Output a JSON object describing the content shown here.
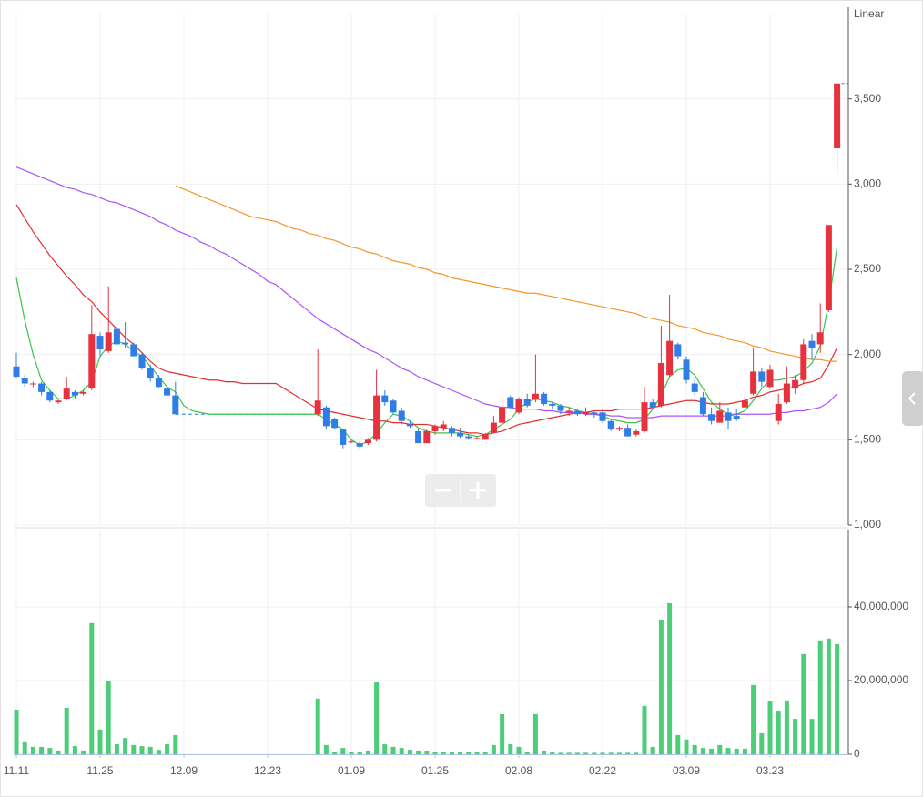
{
  "chart_data": {
    "type": "candlestick",
    "scale": "Linear",
    "categories": [
      "11.11",
      null,
      null,
      null,
      null,
      null,
      null,
      null,
      null,
      null,
      "11.25",
      null,
      null,
      null,
      null,
      null,
      null,
      null,
      null,
      null,
      "12.09",
      null,
      null,
      null,
      null,
      null,
      null,
      null,
      null,
      null,
      "12.23",
      null,
      null,
      null,
      null,
      null,
      null,
      null,
      null,
      null,
      "01.09",
      null,
      null,
      null,
      null,
      null,
      null,
      null,
      null,
      null,
      "01.25",
      null,
      null,
      null,
      null,
      null,
      null,
      null,
      null,
      null,
      "02.08",
      null,
      null,
      null,
      null,
      null,
      null,
      null,
      null,
      null,
      "02.22",
      null,
      null,
      null,
      null,
      null,
      null,
      null,
      null,
      null,
      "03.09",
      null,
      null,
      null,
      null,
      null,
      null,
      null,
      null,
      null,
      "03.23",
      null,
      null,
      null,
      null,
      null,
      null,
      null,
      null
    ],
    "open": [
      1930,
      1860,
      1830,
      1830,
      1780,
      1720,
      1740,
      1780,
      1770,
      1800,
      2110,
      2020,
      2150,
      2070,
      2060,
      2000,
      1920,
      1860,
      1800,
      1760,
      null,
      null,
      null,
      null,
      null,
      null,
      null,
      null,
      null,
      null,
      null,
      null,
      null,
      null,
      null,
      null,
      1650,
      1690,
      1620,
      1560,
      1490,
      1480,
      1480,
      1500,
      1760,
      1730,
      1670,
      1590,
      1550,
      1480,
      1550,
      1570,
      1570,
      1540,
      1520,
      1510,
      1500,
      1540,
      1600,
      1750,
      1660,
      1740,
      1740,
      1770,
      1710,
      1700,
      1660,
      1670,
      1650,
      1660,
      1660,
      1610,
      1560,
      1570,
      1530,
      1550,
      1720,
      1700,
      1880,
      2060,
      1970,
      1830,
      1750,
      1650,
      1600,
      1660,
      1640,
      1690,
      1770,
      1900,
      1810,
      1610,
      1720,
      1800,
      1850,
      2080,
      2060,
      2260,
      3210
    ],
    "high": [
      2010,
      1880,
      1840,
      1840,
      1790,
      1740,
      1870,
      1790,
      1790,
      2290,
      2130,
      2400,
      2180,
      2190,
      2070,
      2010,
      1940,
      1880,
      1810,
      1840,
      null,
      null,
      null,
      null,
      null,
      null,
      null,
      null,
      null,
      null,
      null,
      null,
      null,
      null,
      null,
      null,
      2030,
      1700,
      1630,
      1560,
      1500,
      1490,
      1510,
      1910,
      1790,
      1740,
      1690,
      1610,
      1560,
      1560,
      1590,
      1610,
      1580,
      1570,
      1530,
      1520,
      1540,
      1640,
      1750,
      1760,
      1750,
      1770,
      2000,
      1780,
      1720,
      1710,
      1690,
      1680,
      1690,
      1670,
      1680,
      1620,
      1580,
      1590,
      1560,
      1810,
      1740,
      2170,
      2350,
      2070,
      1990,
      1860,
      1780,
      1690,
      1720,
      1690,
      1680,
      1760,
      2040,
      1920,
      1940,
      1770,
      1930,
      1880,
      2090,
      2120,
      2300,
      2760,
      3590
    ],
    "low": [
      1860,
      1810,
      1810,
      1760,
      1720,
      1710,
      1730,
      1740,
      1760,
      1790,
      1990,
      2010,
      2050,
      2040,
      1990,
      1910,
      1840,
      1800,
      1740,
      1650,
      null,
      null,
      null,
      null,
      null,
      null,
      null,
      null,
      null,
      null,
      null,
      null,
      null,
      null,
      null,
      null,
      1640,
      1560,
      1560,
      1450,
      1480,
      1450,
      1470,
      1490,
      1700,
      1650,
      1590,
      1570,
      1480,
      1480,
      1530,
      1550,
      1520,
      1510,
      1500,
      1500,
      1500,
      1540,
      1590,
      1680,
      1650,
      1690,
      1720,
      1700,
      1680,
      1650,
      1640,
      1640,
      1640,
      1630,
      1600,
      1550,
      1550,
      1520,
      1520,
      1540,
      1680,
      1690,
      1870,
      1970,
      1830,
      1760,
      1640,
      1590,
      1600,
      1560,
      1610,
      1690,
      1760,
      1810,
      1800,
      1590,
      1710,
      1770,
      1830,
      1970,
      2010,
      2250,
      3060
    ],
    "close": [
      1870,
      1830,
      1830,
      1780,
      1730,
      1730,
      1800,
      1760,
      1780,
      2120,
      2030,
      2130,
      2060,
      2060,
      1990,
      1920,
      1860,
      1810,
      1760,
      1650,
      null,
      null,
      null,
      null,
      null,
      null,
      null,
      null,
      null,
      null,
      null,
      null,
      null,
      null,
      null,
      null,
      1730,
      1580,
      1570,
      1470,
      1490,
      1460,
      1500,
      1760,
      1720,
      1660,
      1610,
      1580,
      1480,
      1550,
      1580,
      1590,
      1540,
      1520,
      1510,
      1510,
      1530,
      1600,
      1690,
      1690,
      1740,
      1700,
      1770,
      1710,
      1700,
      1670,
      1670,
      1650,
      1660,
      1650,
      1610,
      1560,
      1570,
      1520,
      1550,
      1720,
      1690,
      1950,
      2080,
      1990,
      1850,
      1780,
      1650,
      1610,
      1670,
      1610,
      1620,
      1730,
      1900,
      1840,
      1910,
      1710,
      1830,
      1850,
      2060,
      2040,
      2130,
      2760,
      3590
    ],
    "up_color": "#e8313f",
    "down_color": "#2f7ee6",
    "lines": [
      {
        "color": "#3ec24c",
        "values": [
          2450,
          2200,
          2000,
          1850,
          1790,
          1740,
          1740,
          1760,
          1790,
          1840,
          1990,
          2050,
          2080,
          2060,
          2020,
          1990,
          1930,
          1870,
          1810,
          1780,
          1700,
          1670,
          1660,
          1650,
          1650,
          1650,
          1650,
          1650,
          1650,
          1650,
          1650,
          1650,
          1650,
          1650,
          1650,
          1650,
          1650,
          1620,
          1590,
          1560,
          1500,
          1470,
          1490,
          1540,
          1600,
          1650,
          1640,
          1610,
          1570,
          1550,
          1540,
          1540,
          1540,
          1540,
          1530,
          1520,
          1530,
          1560,
          1590,
          1620,
          1680,
          1720,
          1740,
          1730,
          1720,
          1700,
          1690,
          1670,
          1660,
          1650,
          1640,
          1620,
          1610,
          1600,
          1600,
          1620,
          1680,
          1760,
          1870,
          1910,
          1920,
          1880,
          1800,
          1720,
          1680,
          1650,
          1650,
          1670,
          1730,
          1800,
          1850,
          1850,
          1860,
          1870,
          1900,
          1950,
          2050,
          2300,
          2630
        ]
      },
      {
        "color": "#e0302f",
        "values": [
          2880,
          2800,
          2720,
          2650,
          2580,
          2520,
          2460,
          2410,
          2350,
          2310,
          2250,
          2200,
          2150,
          2100,
          2060,
          2010,
          1960,
          1920,
          1900,
          1890,
          1880,
          1870,
          1860,
          1850,
          1850,
          1840,
          1840,
          1830,
          1830,
          1830,
          1830,
          1830,
          1800,
          1770,
          1740,
          1710,
          1680,
          1670,
          1660,
          1650,
          1640,
          1630,
          1620,
          1610,
          1610,
          1600,
          1600,
          1590,
          1590,
          1590,
          1580,
          1570,
          1560,
          1550,
          1540,
          1540,
          1530,
          1540,
          1550,
          1570,
          1590,
          1600,
          1610,
          1620,
          1630,
          1640,
          1650,
          1660,
          1660,
          1670,
          1670,
          1670,
          1680,
          1680,
          1680,
          1680,
          1690,
          1700,
          1710,
          1720,
          1730,
          1730,
          1720,
          1710,
          1710,
          1710,
          1720,
          1730,
          1750,
          1760,
          1780,
          1790,
          1800,
          1810,
          1830,
          1840,
          1860,
          1940,
          2040
        ]
      },
      {
        "color": "#a855f7",
        "values": [
          3100,
          3080,
          3060,
          3040,
          3020,
          3000,
          2980,
          2970,
          2950,
          2940,
          2920,
          2900,
          2890,
          2870,
          2850,
          2830,
          2810,
          2780,
          2760,
          2730,
          2710,
          2690,
          2660,
          2640,
          2610,
          2590,
          2560,
          2530,
          2500,
          2470,
          2430,
          2410,
          2370,
          2330,
          2290,
          2250,
          2210,
          2180,
          2150,
          2120,
          2090,
          2060,
          2030,
          2010,
          1980,
          1950,
          1920,
          1900,
          1870,
          1850,
          1830,
          1810,
          1790,
          1770,
          1750,
          1730,
          1710,
          1700,
          1690,
          1690,
          1680,
          1680,
          1680,
          1670,
          1670,
          1660,
          1660,
          1660,
          1650,
          1650,
          1650,
          1640,
          1640,
          1630,
          1630,
          1630,
          1630,
          1640,
          1640,
          1640,
          1640,
          1640,
          1640,
          1640,
          1640,
          1640,
          1650,
          1650,
          1650,
          1650,
          1650,
          1660,
          1660,
          1670,
          1670,
          1680,
          1690,
          1720,
          1770
        ]
      },
      {
        "color": "#f5962a",
        "values": [
          null,
          null,
          null,
          null,
          null,
          null,
          null,
          null,
          null,
          null,
          null,
          null,
          null,
          null,
          null,
          null,
          null,
          null,
          null,
          2990,
          2970,
          2950,
          2930,
          2910,
          2890,
          2870,
          2850,
          2830,
          2810,
          2800,
          2790,
          2780,
          2760,
          2740,
          2730,
          2710,
          2700,
          2680,
          2670,
          2650,
          2630,
          2620,
          2600,
          2590,
          2570,
          2550,
          2540,
          2530,
          2510,
          2500,
          2480,
          2470,
          2450,
          2440,
          2430,
          2420,
          2410,
          2400,
          2390,
          2380,
          2370,
          2360,
          2360,
          2350,
          2340,
          2330,
          2320,
          2310,
          2300,
          2290,
          2280,
          2270,
          2260,
          2250,
          2240,
          2220,
          2210,
          2200,
          2190,
          2170,
          2160,
          2150,
          2130,
          2120,
          2110,
          2090,
          2080,
          2070,
          2050,
          2040,
          2020,
          2010,
          2000,
          1990,
          1980,
          1970,
          1970,
          1960,
          1960
        ]
      }
    ],
    "ylim": [
      1000,
      4000
    ],
    "yticks": [
      {
        "value": 1000,
        "label": "1,000"
      },
      {
        "value": 1500,
        "label": "1,500"
      },
      {
        "value": 2000,
        "label": "2,000"
      },
      {
        "value": 2500,
        "label": "2,500"
      },
      {
        "value": 3000,
        "label": "3,000"
      },
      {
        "value": 3500,
        "label": "3,500"
      }
    ],
    "grid": true,
    "volume": {
      "type": "bar",
      "color": "#4ccd78",
      "values": [
        12100000,
        3500000,
        2000000,
        2000000,
        1700000,
        1000000,
        12600000,
        2200000,
        1000000,
        35600000,
        6700000,
        20000000,
        2700000,
        4400000,
        2500000,
        2200000,
        2000000,
        1200000,
        2700000,
        5200000,
        null,
        null,
        null,
        null,
        null,
        null,
        null,
        null,
        null,
        null,
        null,
        null,
        null,
        null,
        null,
        null,
        15100000,
        2500000,
        700000,
        1700000,
        500000,
        700000,
        1000000,
        19500000,
        2700000,
        2000000,
        1700000,
        1200000,
        1000000,
        1000000,
        700000,
        700000,
        700000,
        500000,
        500000,
        500000,
        700000,
        2500000,
        10900000,
        2700000,
        2000000,
        500000,
        10900000,
        1000000,
        700000,
        400000,
        400000,
        400000,
        400000,
        400000,
        400000,
        400000,
        400000,
        400000,
        400000,
        13100000,
        2000000,
        36500000,
        41000000,
        5200000,
        4000000,
        2500000,
        1700000,
        1500000,
        2500000,
        1700000,
        1500000,
        1500000,
        18800000,
        5700000,
        14300000,
        11600000,
        14600000,
        9600000,
        27200000,
        9600000,
        30900000,
        31400000,
        29900000
      ],
      "ylim": [
        0,
        60000000
      ],
      "yticks": [
        0,
        {
          "value": 20000000,
          "label": "20,000,000"
        },
        {
          "value": 40000000,
          "label": "40,000,000"
        }
      ]
    }
  }
}
